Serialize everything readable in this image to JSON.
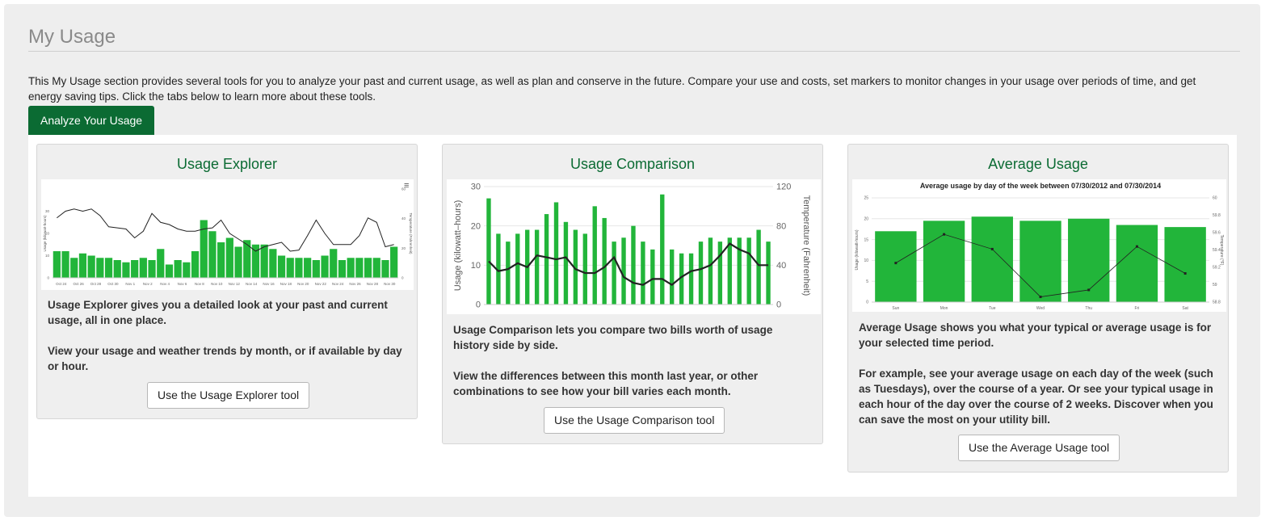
{
  "page": {
    "title": "My Usage",
    "intro": "This My Usage section provides several tools for you to analyze your past and current usage, as well as plan and conserve in the future. Compare your use and costs, set markers to monitor changes in your usage over periods of time, and get energy saving tips. Click the tabs below to learn more about these tools.",
    "tab_label": "Analyze Your Usage"
  },
  "colors": {
    "brand_green": "#0b6b33",
    "bar_green": "#22b53a",
    "line": "#222222"
  },
  "cards": [
    {
      "title": "Usage Explorer",
      "paragraphs": [
        "Usage Explorer gives you a detailed look at your past and current usage, all in one place.",
        "View your usage and weather trends by month, or if available by day or hour."
      ],
      "button": "Use the Usage Explorer tool"
    },
    {
      "title": "Usage Comparison",
      "paragraphs": [
        "Usage Comparison lets you compare two bills worth of usage history side by side.",
        "View the differences between this month last year, or other combinations to see how your bill varies each month."
      ],
      "button": "Use the Usage Comparison tool"
    },
    {
      "title": "Average Usage",
      "paragraphs": [
        "Average Usage shows you what your typical or average usage is for your selected time period.",
        "For example, see your average usage on each day of the week (such as Tuesdays), over the course of a year. Or see your typical usage in each hour of the day over the course of 2 weeks. Discover when you can save the most on your utility bill."
      ],
      "button": "Use the Average Usage tool"
    }
  ],
  "chart_data": [
    {
      "type": "bar",
      "menu_icon": "menu-icon",
      "ylabel": "Usage (kilowatt-hours)",
      "y2label": "Temperature (Fahrenheit)",
      "ylim": [
        0,
        40
      ],
      "y2lim": [
        0,
        80
      ],
      "y_ticks": [
        "0",
        "10",
        "20",
        "30"
      ],
      "y2_ticks": [
        "0",
        "20",
        "40",
        "60"
      ],
      "x_tick_labels": [
        "Oct 24",
        "Oct 26",
        "Oct 28",
        "Oct 30",
        "Nov 1",
        "Nov 2",
        "Nov 4",
        "Nov 6",
        "Nov 8",
        "Nov 10",
        "Nov 12",
        "Nov 14",
        "Nov 16",
        "Nov 18",
        "Nov 20",
        "Nov 22",
        "Nov 24",
        "Nov 26",
        "Nov 28",
        "Nov 30"
      ],
      "series": [
        {
          "name": "Usage",
          "values": [
            12,
            12,
            9,
            11,
            10,
            9,
            9,
            8,
            7,
            8,
            9,
            8,
            13,
            6,
            8,
            7,
            12,
            26,
            21,
            16,
            18,
            14,
            17,
            15,
            15,
            13,
            10,
            9,
            9,
            9,
            8,
            10,
            13,
            8,
            9,
            9,
            9,
            9,
            8,
            14
          ]
        },
        {
          "name": "Temperature",
          "values": [
            54,
            60,
            62,
            60,
            62,
            56,
            46,
            45,
            44,
            36,
            42,
            58,
            50,
            48,
            44,
            42,
            42,
            44,
            45,
            52,
            40,
            35,
            30,
            24,
            28,
            30,
            32,
            24,
            25,
            38,
            52,
            40,
            30,
            30,
            30,
            38,
            54,
            50,
            28,
            30
          ]
        }
      ]
    },
    {
      "type": "bar",
      "ylabel": "Usage (kilowatt–hours)",
      "y2label": "Temperature (Fahrenheit)",
      "ylim": [
        0,
        30
      ],
      "y2lim": [
        0,
        120
      ],
      "y_ticks": [
        "0",
        "10",
        "20",
        "30"
      ],
      "y2_ticks": [
        "0",
        "40",
        "80",
        "120"
      ],
      "series": [
        {
          "name": "Usage",
          "values": [
            27,
            18,
            16,
            18,
            19,
            19,
            23,
            26,
            21,
            19,
            18,
            25,
            22,
            16,
            17,
            20,
            16,
            14,
            28,
            14,
            13,
            13,
            16,
            17,
            16,
            17,
            17,
            17,
            19,
            16
          ]
        },
        {
          "name": "Temperature",
          "values": [
            44,
            34,
            36,
            42,
            38,
            50,
            48,
            46,
            48,
            36,
            32,
            32,
            38,
            48,
            28,
            22,
            20,
            26,
            26,
            20,
            28,
            34,
            36,
            40,
            50,
            62,
            56,
            52,
            40,
            40
          ]
        }
      ]
    },
    {
      "type": "bar",
      "title": "Average usage by day of the week between 07/30/2012 and 07/30/2014",
      "ylabel": "Usage (kilowatt-hours)",
      "y2label": "Temperature (°F)",
      "categories": [
        "Sun",
        "Mon",
        "Tue",
        "Wed",
        "Thu",
        "Fri",
        "Sat"
      ],
      "ylim": [
        0,
        25
      ],
      "y2lim": [
        58.8,
        60
      ],
      "y_ticks": [
        "0",
        "5",
        "10",
        "15",
        "20",
        "25"
      ],
      "y2_ticks": [
        "58.8",
        "59",
        "59.2",
        "59.4",
        "59.6",
        "59.8",
        "60"
      ],
      "series": [
        {
          "name": "Usage",
          "values": [
            17,
            19.5,
            20.5,
            19.5,
            20,
            18.5,
            18
          ]
        },
        {
          "name": "Temperature",
          "values": [
            59.25,
            59.58,
            59.41,
            58.86,
            58.94,
            59.44,
            59.13
          ]
        }
      ]
    }
  ]
}
